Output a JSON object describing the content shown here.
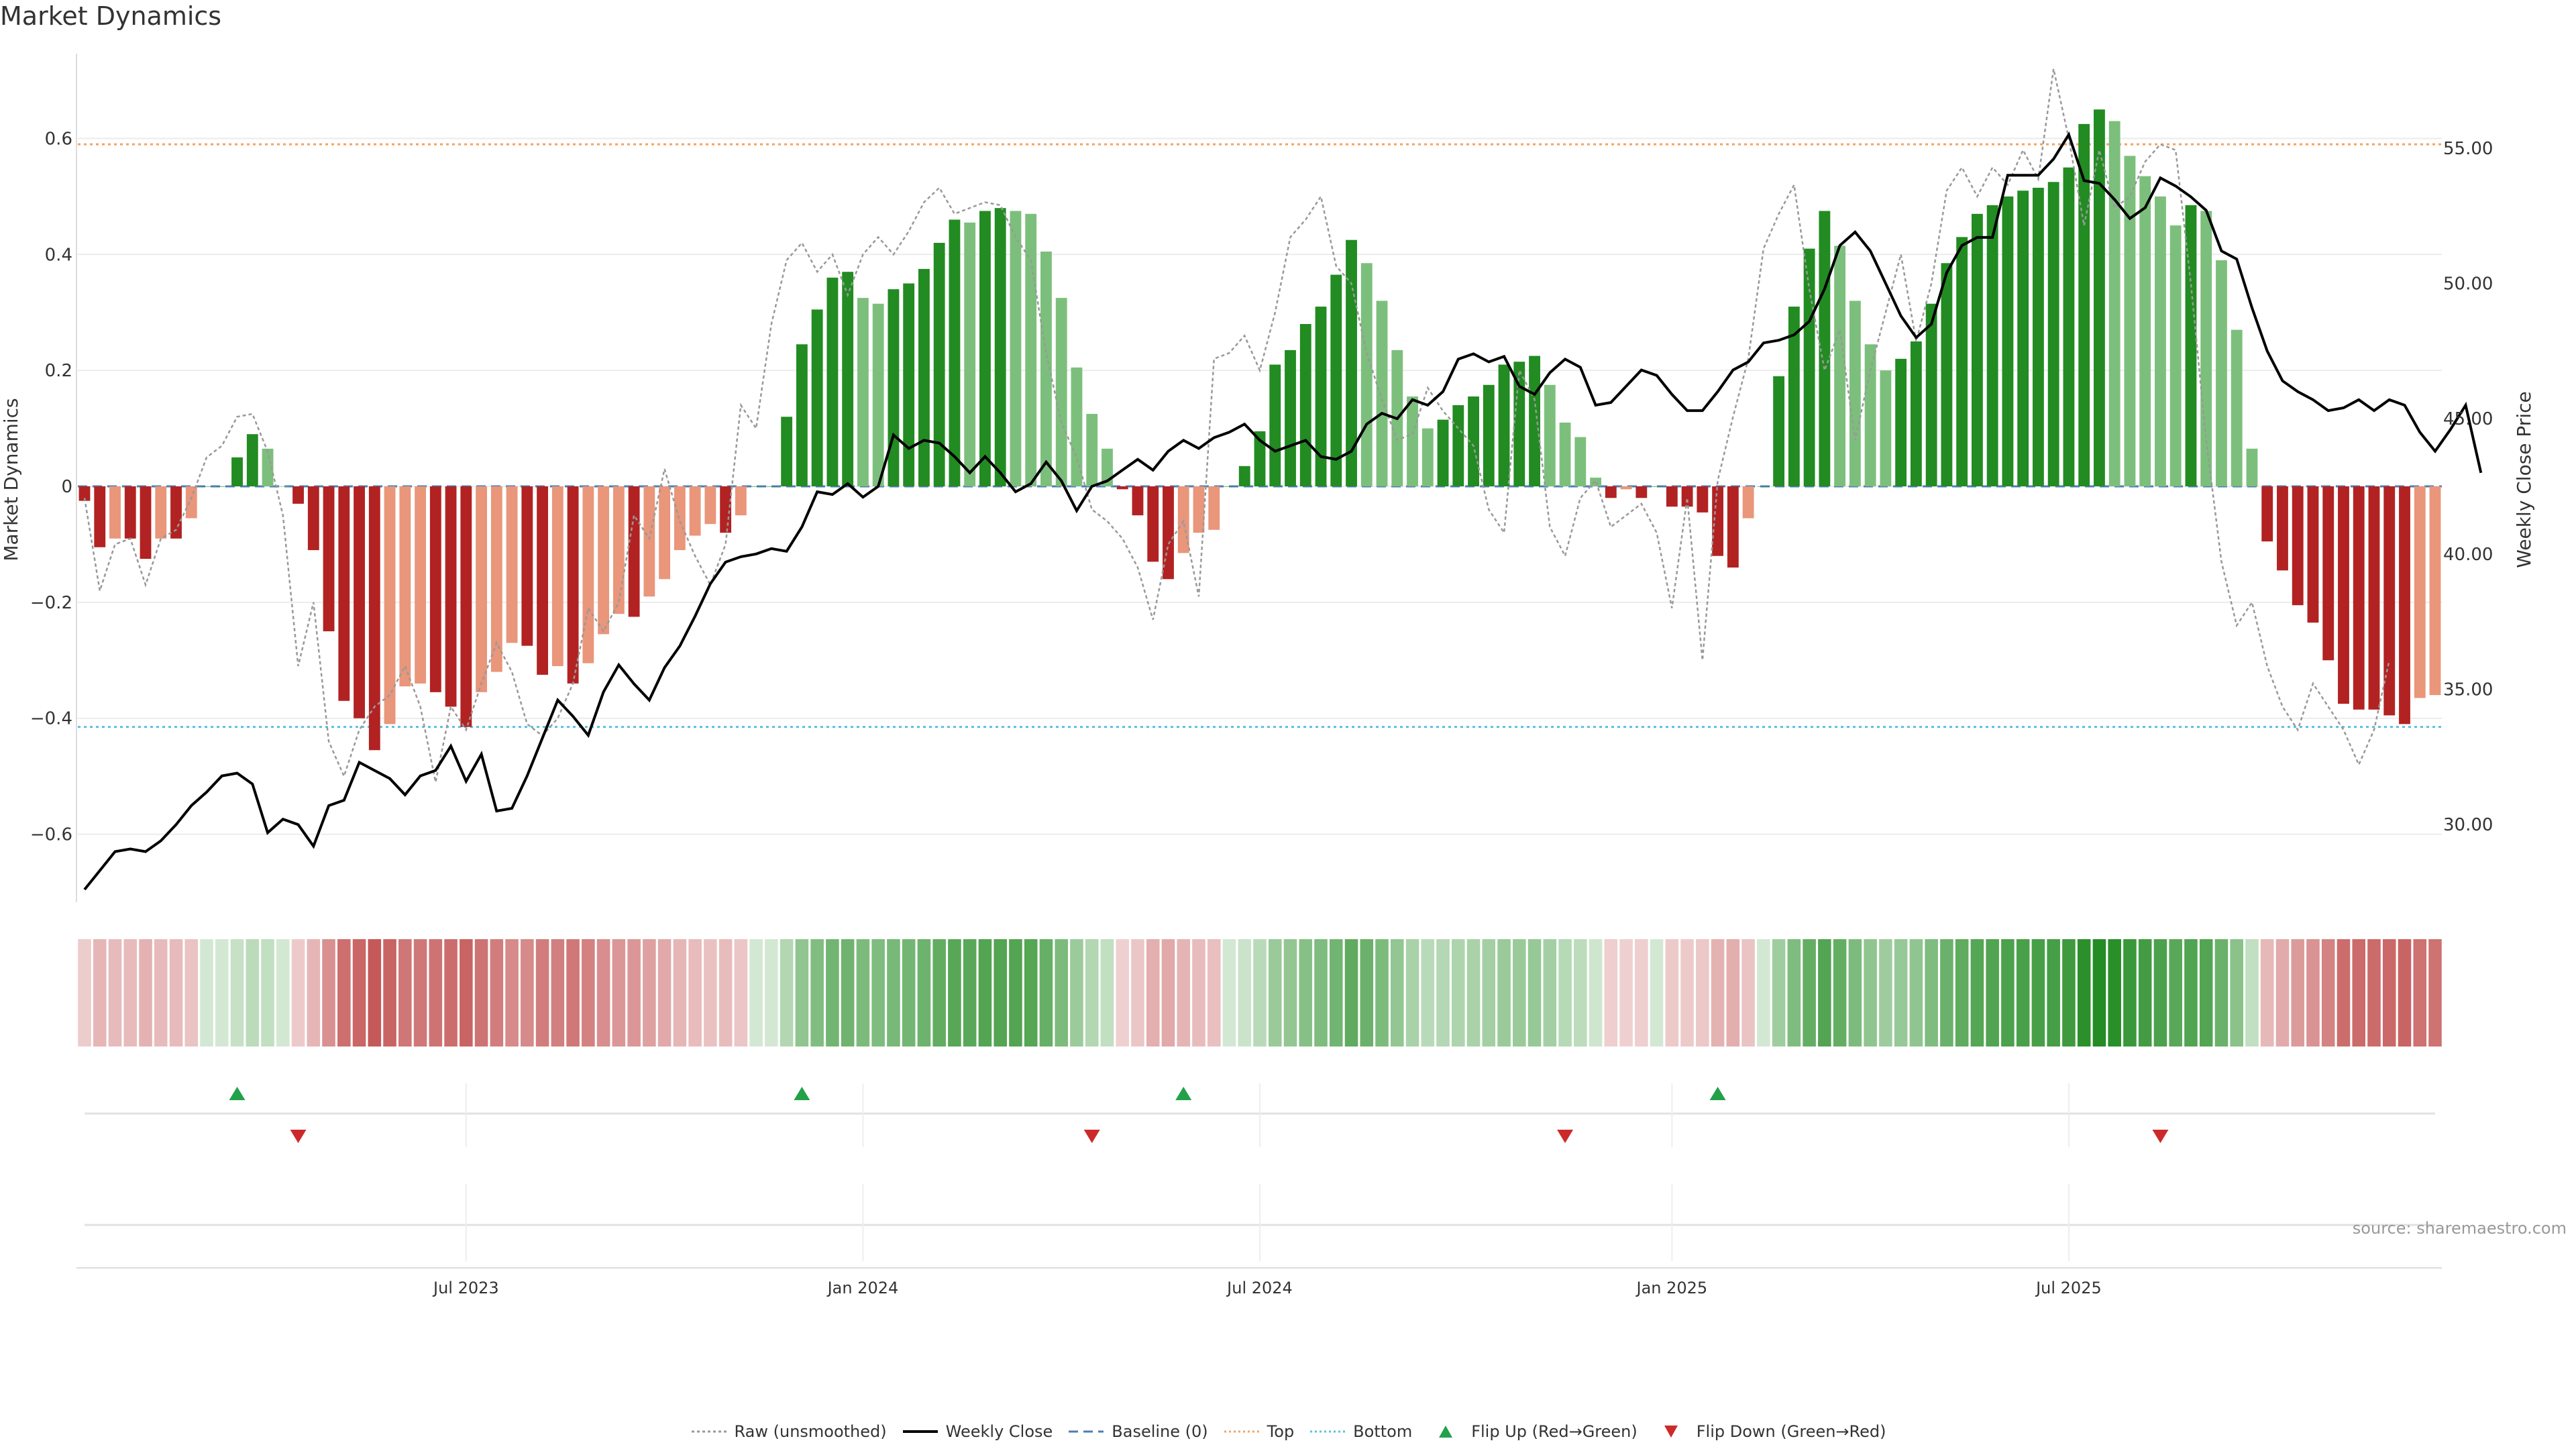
{
  "title": "Market Dynamics",
  "source": "source: sharemaestro.com",
  "left_axis_label": "Market Dynamics",
  "right_axis_label": "Weekly Close Price",
  "legend": [
    {
      "name": "Raw (unsmoothed)",
      "style": "dotted-gray"
    },
    {
      "name": "Weekly Close",
      "style": "solid-black"
    },
    {
      "name": "Baseline (0)",
      "style": "dashed-blue"
    },
    {
      "name": "Top",
      "style": "dotted-orange"
    },
    {
      "name": "Bottom",
      "style": "dotted-cyan"
    },
    {
      "name": "Flip Up (Red→Green)",
      "style": "triangle-up-green"
    },
    {
      "name": "Flip Down (Green→Red)",
      "style": "triangle-down-red"
    }
  ],
  "colors": {
    "dark_green": "#228b22",
    "light_green": "#7cbf7c",
    "dark_red": "#b22222",
    "light_red": "#e9967a",
    "close_line": "#000000",
    "raw_line": "#999999",
    "baseline": "#4a7fb5",
    "top": "#f4a460",
    "bottom": "#5bc0de",
    "flip_up": "#22a14a",
    "flip_down": "#cc2a2a"
  },
  "chart_data": {
    "type": "bar",
    "start_date": "2023-01-09",
    "interval_days": 7,
    "x_ticks": [
      {
        "label": "Jul 2023",
        "date": "2023-07-03"
      },
      {
        "label": "Jan 2024",
        "date": "2024-01-01"
      },
      {
        "label": "Jul 2024",
        "date": "2024-07-01"
      },
      {
        "label": "Jan 2025",
        "date": "2025-01-06"
      },
      {
        "label": "Jul 2025",
        "date": "2025-07-07"
      }
    ],
    "ylim_left": [
      -0.7,
      0.7
    ],
    "yticks_left": [
      -0.6,
      -0.4,
      -0.2,
      0,
      0.2,
      0.4,
      0.6
    ],
    "ytick_labels_left": [
      "−0.6",
      "−0.4",
      "−0.2",
      "0",
      "0.2",
      "0.4",
      "0.6"
    ],
    "ylim_right": [
      27.5,
      57.5
    ],
    "yticks_right": [
      30,
      35,
      40,
      45,
      50,
      55
    ],
    "ytick_labels_right": [
      "30.00",
      "35.00",
      "40.00",
      "45.00",
      "50.00",
      "55.00"
    ],
    "top_line": 0.59,
    "bottom_line": -0.415,
    "grid": true,
    "legend_position": "bottom",
    "series": [
      {
        "name": "Market Dynamics",
        "values": [
          -0.025,
          -0.105,
          -0.09,
          -0.09,
          -0.125,
          -0.09,
          -0.09,
          -0.055,
          0,
          0,
          0.05,
          0.09,
          0.065,
          0,
          -0.03,
          -0.11,
          -0.25,
          -0.37,
          -0.4,
          -0.455,
          -0.41,
          -0.345,
          -0.34,
          -0.355,
          -0.38,
          -0.415,
          -0.355,
          -0.32,
          -0.27,
          -0.275,
          -0.325,
          -0.31,
          -0.34,
          -0.305,
          -0.255,
          -0.22,
          -0.225,
          -0.19,
          -0.16,
          -0.11,
          -0.085,
          -0.065,
          -0.08,
          -0.05,
          0,
          0,
          0.12,
          0.245,
          0.305,
          0.36,
          0.37,
          0.325,
          0.315,
          0.34,
          0.35,
          0.375,
          0.42,
          0.46,
          0.455,
          0.475,
          0.48,
          0.475,
          0.47,
          0.405,
          0.325,
          0.205,
          0.125,
          0.065,
          -0.005,
          -0.05,
          -0.13,
          -0.16,
          -0.115,
          -0.08,
          -0.075,
          0,
          0.035,
          0.095,
          0.21,
          0.235,
          0.28,
          0.31,
          0.365,
          0.425,
          0.385,
          0.32,
          0.235,
          0.155,
          0.1,
          0.115,
          0.14,
          0.155,
          0.175,
          0.21,
          0.215,
          0.225,
          0.175,
          0.11,
          0.085,
          0.015,
          -0.02,
          -0.005,
          -0.02,
          0,
          -0.035,
          -0.035,
          -0.045,
          -0.12,
          -0.14,
          -0.055,
          0,
          0.19,
          0.31,
          0.41,
          0.475,
          0.415,
          0.32,
          0.245,
          0.2,
          0.22,
          0.25,
          0.315,
          0.385,
          0.43,
          0.47,
          0.485,
          0.5,
          0.51,
          0.515,
          0.525,
          0.55,
          0.625,
          0.65,
          0.63,
          0.57,
          0.535,
          0.5,
          0.45,
          0.485,
          0.475,
          0.39,
          0.27,
          0.065,
          -0.095,
          -0.145,
          -0.205,
          -0.235,
          -0.3,
          -0.375,
          -0.385,
          -0.385,
          -0.395,
          -0.41,
          -0.365,
          -0.36
        ]
      },
      {
        "name": "Raw (unsmoothed)",
        "values": [
          -0.02,
          -0.18,
          -0.1,
          -0.09,
          -0.17,
          -0.09,
          -0.075,
          -0.02,
          0.05,
          0.07,
          0.12,
          0.125,
          0.06,
          -0.05,
          -0.31,
          -0.2,
          -0.44,
          -0.5,
          -0.42,
          -0.38,
          -0.36,
          -0.31,
          -0.38,
          -0.51,
          -0.38,
          -0.42,
          -0.34,
          -0.27,
          -0.32,
          -0.41,
          -0.43,
          -0.4,
          -0.34,
          -0.21,
          -0.25,
          -0.2,
          -0.05,
          -0.09,
          0.03,
          -0.06,
          -0.12,
          -0.17,
          -0.1,
          0.14,
          0.1,
          0.28,
          0.39,
          0.42,
          0.37,
          0.4,
          0.33,
          0.4,
          0.43,
          0.4,
          0.44,
          0.49,
          0.515,
          0.47,
          0.48,
          0.49,
          0.485,
          0.43,
          0.39,
          0.23,
          0.11,
          0.05,
          -0.04,
          -0.06,
          -0.09,
          -0.14,
          -0.23,
          -0.1,
          -0.06,
          -0.19,
          0.22,
          0.23,
          0.26,
          0.2,
          0.3,
          0.43,
          0.46,
          0.5,
          0.38,
          0.35,
          0.23,
          0.15,
          0.08,
          0.09,
          0.17,
          0.13,
          0.1,
          0.07,
          -0.04,
          -0.08,
          0.2,
          0.15,
          -0.07,
          -0.12,
          -0.02,
          0.01,
          -0.07,
          -0.05,
          -0.03,
          -0.08,
          -0.21,
          -0.02,
          -0.3,
          0.01,
          0.12,
          0.22,
          0.41,
          0.47,
          0.52,
          0.34,
          0.2,
          0.27,
          0.08,
          0.2,
          0.3,
          0.4,
          0.25,
          0.35,
          0.51,
          0.55,
          0.5,
          0.55,
          0.52,
          0.58,
          0.53,
          0.72,
          0.6,
          0.45,
          0.58,
          0.48,
          0.5,
          0.56,
          0.59,
          0.58,
          0.35,
          0.08,
          -0.13,
          -0.24,
          -0.2,
          -0.31,
          -0.38,
          -0.42,
          -0.34,
          -0.38,
          -0.42,
          -0.48,
          -0.42,
          -0.3
        ]
      },
      {
        "name": "Weekly Close",
        "axis": "right",
        "values": [
          27.6,
          28.3,
          29.0,
          29.1,
          29.0,
          29.4,
          30.0,
          30.7,
          31.2,
          31.8,
          31.9,
          31.5,
          29.7,
          30.2,
          30.0,
          29.2,
          30.7,
          30.9,
          32.3,
          32.0,
          31.7,
          31.1,
          31.8,
          32.0,
          32.9,
          31.6,
          32.6,
          30.5,
          30.6,
          31.8,
          33.2,
          34.6,
          34.0,
          33.3,
          34.9,
          35.9,
          35.2,
          34.6,
          35.8,
          36.6,
          37.7,
          38.9,
          39.7,
          39.9,
          40.0,
          40.2,
          40.1,
          41.0,
          42.3,
          42.2,
          42.6,
          42.1,
          42.5,
          44.4,
          43.9,
          44.2,
          44.1,
          43.6,
          43.0,
          43.6,
          43.0,
          42.3,
          42.6,
          43.4,
          42.7,
          41.6,
          42.5,
          42.7,
          43.1,
          43.5,
          43.1,
          43.8,
          44.2,
          43.9,
          44.3,
          44.5,
          44.8,
          44.2,
          43.8,
          44.0,
          44.2,
          43.6,
          43.5,
          43.8,
          44.8,
          45.2,
          45.0,
          45.7,
          45.5,
          46.0,
          47.2,
          47.4,
          47.1,
          47.3,
          46.2,
          45.9,
          46.7,
          47.2,
          46.9,
          45.5,
          45.6,
          46.2,
          46.8,
          46.6,
          45.9,
          45.3,
          45.3,
          46.0,
          46.8,
          47.1,
          47.8,
          47.9,
          48.1,
          48.6,
          49.8,
          51.4,
          51.9,
          51.2,
          50.0,
          48.8,
          48.0,
          48.5,
          50.4,
          51.4,
          51.7,
          51.7,
          54.0,
          54.0,
          54.0,
          54.6,
          55.5,
          53.8,
          53.7,
          53.1,
          52.4,
          52.8,
          53.9,
          53.6,
          53.2,
          52.7,
          51.2,
          50.9,
          49.1,
          47.5,
          46.4,
          46.0,
          45.7,
          45.3,
          45.4,
          45.7,
          45.3,
          45.7,
          45.5,
          44.5,
          43.8,
          44.6,
          45.5,
          43.0
        ]
      }
    ],
    "flip_up": [
      "2023-03-20",
      "2023-12-04",
      "2024-05-27",
      "2025-01-27"
    ],
    "flip_down": [
      "2023-04-17",
      "2024-04-15",
      "2024-11-18",
      "2025-08-18"
    ],
    "strip_note": "color-intensity strip of Market Dynamics per week"
  }
}
